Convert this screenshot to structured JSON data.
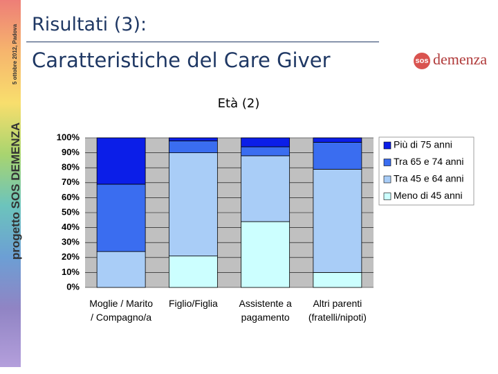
{
  "sidebar": {
    "project": "progetto SOS DEMENZA",
    "date": "5 ottobre 2012, Padova"
  },
  "header": {
    "title": "Risultati (3):",
    "subtitle": "Caratteristiche del Care Giver"
  },
  "logo": {
    "mark": "sos",
    "name": "demenza"
  },
  "chart_data": {
    "type": "stacked_bar",
    "title": "Età (2)",
    "categories": [
      "Moglie / Marito / Compagno/a",
      "Figlio/Figlia",
      "Assistente a pagamento",
      "Altri parenti (fratelli/nipoti)"
    ],
    "series": [
      {
        "name": "Meno di 45 anni",
        "color": "#ccffff",
        "values": [
          0,
          21,
          44,
          10
        ]
      },
      {
        "name": "Tra 45 e 64 anni",
        "color": "#a9cdf7",
        "values": [
          24,
          69,
          44,
          69
        ]
      },
      {
        "name": "Tra 65 e 74 anni",
        "color": "#3a6df0",
        "values": [
          45,
          8,
          6,
          18
        ]
      },
      {
        "name": "Più di 75 anni",
        "color": "#0b1ee8",
        "values": [
          31,
          2,
          6,
          3
        ]
      }
    ],
    "ylim": [
      0,
      100
    ],
    "yticks": [
      {
        "value": 0,
        "label": "0%"
      },
      {
        "value": 10,
        "label": "10%"
      },
      {
        "value": 20,
        "label": "20%"
      },
      {
        "value": 30,
        "label": "30%"
      },
      {
        "value": 40,
        "label": "40%"
      },
      {
        "value": 50,
        "label": "50%"
      },
      {
        "value": 60,
        "label": "60%"
      },
      {
        "value": 70,
        "label": "70%"
      },
      {
        "value": 80,
        "label": "80%"
      },
      {
        "value": 90,
        "label": "90%"
      },
      {
        "value": 100,
        "label": "100%"
      }
    ],
    "grid": true,
    "legend": "right"
  }
}
